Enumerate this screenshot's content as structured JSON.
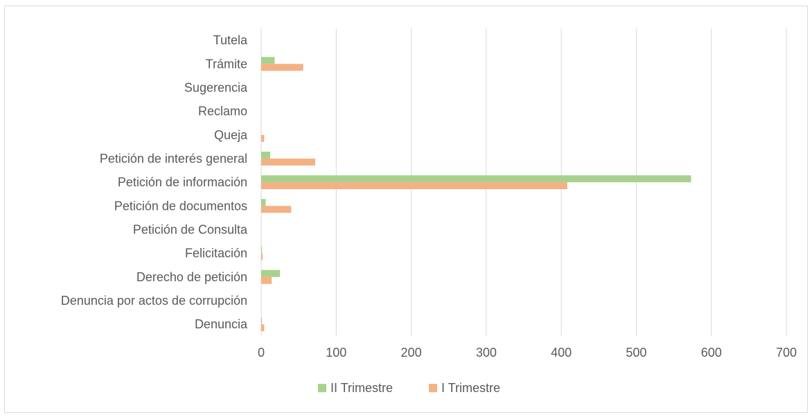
{
  "chart_data": {
    "type": "bar",
    "orientation": "horizontal",
    "categories": [
      "Tutela",
      "Trámite",
      "Sugerencia",
      "Reclamo",
      "Queja",
      "Petición de interés general",
      "Petición de información",
      "Petición de documentos",
      "Petición de Consulta",
      "Felicitación",
      "Derecho de petición",
      "Denuncia por actos de corrupción",
      "Denuncia"
    ],
    "series": [
      {
        "name": "II Trimestre",
        "color": "#a9d18e",
        "values": [
          0,
          18,
          0,
          0,
          0,
          12,
          573,
          6,
          0,
          1,
          25,
          0,
          1
        ]
      },
      {
        "name": "I Trimestre",
        "color": "#f4b183",
        "values": [
          0,
          56,
          0,
          0,
          4,
          72,
          408,
          40,
          0,
          2,
          14,
          0,
          4
        ]
      }
    ],
    "xlim": [
      0,
      700
    ],
    "xticks": [
      0,
      100,
      200,
      300,
      400,
      500,
      600,
      700
    ],
    "grid": true,
    "legend_position": "bottom"
  }
}
